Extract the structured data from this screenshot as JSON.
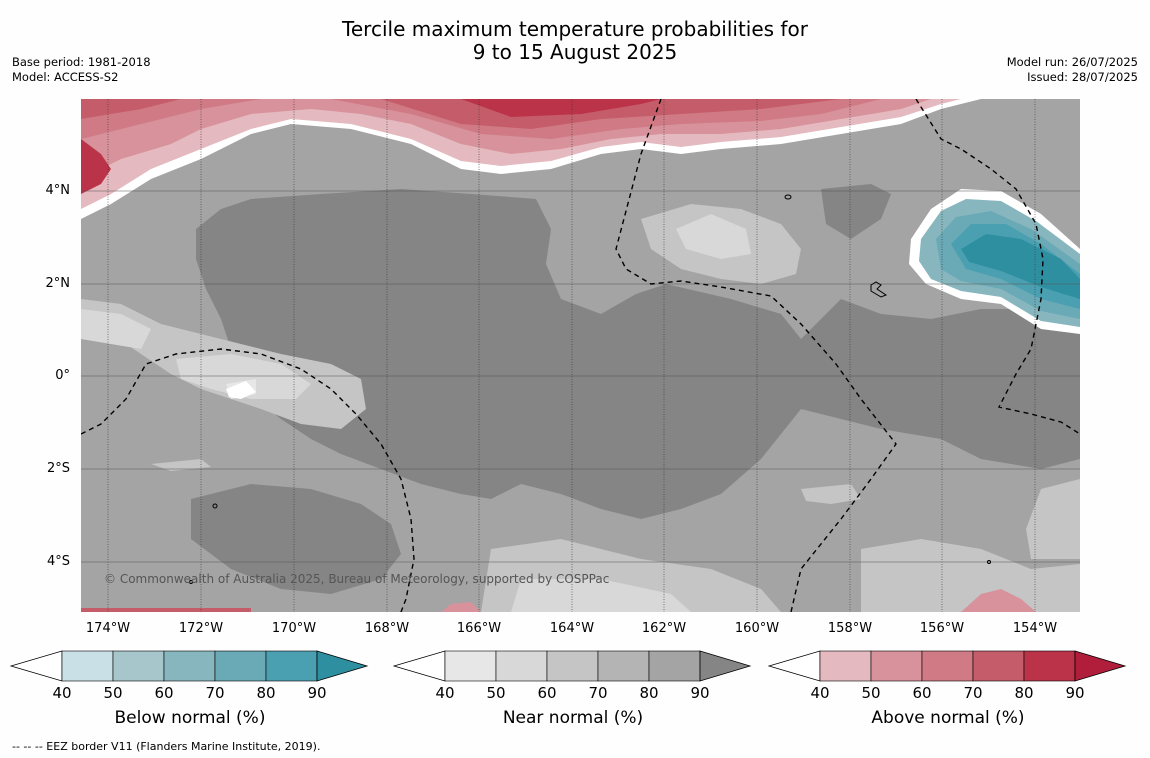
{
  "title_line1": "Tercile maximum temperature probabilities for",
  "title_line2": "9 to 15 August 2025",
  "base_period": "Base period: 1981-2018",
  "model": "Model: ACCESS-S2",
  "model_run": "Model run: 26/07/2025",
  "issued": "Issued: 28/07/2025",
  "copyright": "© Commonwealth of Australia 2025, Bureau of Meteorology, supported by COSPPac",
  "eez_note": "--  --  -- EEZ border V11 (Flanders Marine Institute, 2019).",
  "lat_labels": [
    "4°N",
    "2°N",
    "0°",
    "2°S",
    "4°S"
  ],
  "lon_labels": [
    "174°W",
    "172°W",
    "170°W",
    "168°W",
    "166°W",
    "164°W",
    "162°W",
    "160°W",
    "158°W",
    "156°W",
    "154°W"
  ],
  "colorbars": [
    {
      "title": "Below normal (%)",
      "ticks": [
        "40",
        "50",
        "60",
        "70",
        "80",
        "90"
      ],
      "colors": [
        "#ffffff",
        "#c8e0e6",
        "#a6c6cb",
        "#88b6be",
        "#6aa9b6",
        "#4aa0b0",
        "#2e8fa0"
      ]
    },
    {
      "title": "Near normal (%)",
      "ticks": [
        "40",
        "50",
        "60",
        "70",
        "80",
        "90"
      ],
      "colors": [
        "#ffffff",
        "#e7e7e7",
        "#d8d8d8",
        "#c5c5c5",
        "#b4b4b4",
        "#a4a4a4",
        "#858585"
      ]
    },
    {
      "title": "Above normal (%)",
      "ticks": [
        "40",
        "50",
        "60",
        "70",
        "80",
        "90"
      ],
      "colors": [
        "#ffffff",
        "#e4b9bf",
        "#d8929b",
        "#cf7a84",
        "#c55c69",
        "#bb3348",
        "#b11e3c"
      ]
    }
  ]
}
